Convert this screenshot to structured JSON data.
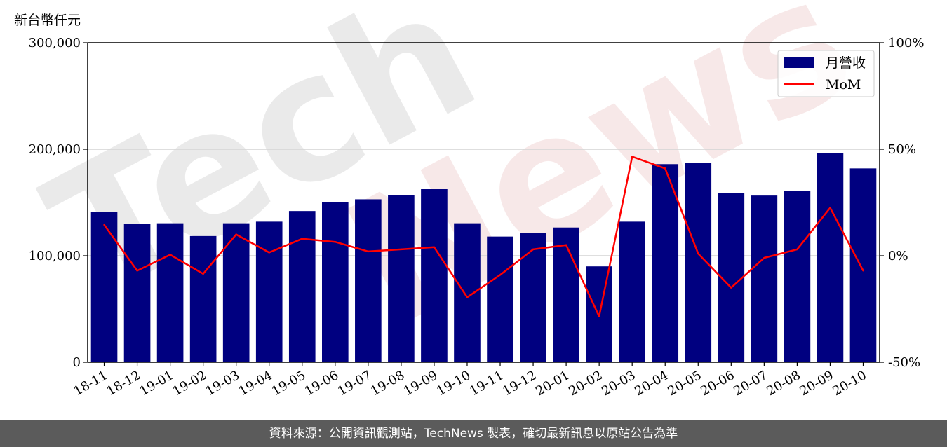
{
  "unit_label": "新台幣仟元",
  "footer_text": "資料來源：公開資訊觀測站，TechNews 製表，確切最新訊息以原站公告為準",
  "watermark": {
    "part1": "Tech",
    "part2": "News"
  },
  "chart_data": {
    "type": "bar",
    "categories": [
      "18-11",
      "18-12",
      "19-01",
      "19-02",
      "19-03",
      "19-04",
      "19-05",
      "19-06",
      "19-07",
      "19-08",
      "19-09",
      "19-10",
      "19-11",
      "19-12",
      "20-01",
      "20-02",
      "20-03",
      "20-04",
      "20-05",
      "20-06",
      "20-07",
      "20-08",
      "20-09",
      "20-10"
    ],
    "series": [
      {
        "name": "月營收",
        "type": "bar",
        "axis": "left",
        "color": "#000080",
        "values": [
          141000,
          130000,
          130500,
          118500,
          130500,
          132000,
          142000,
          150500,
          153000,
          157000,
          162500,
          130500,
          118000,
          121500,
          126500,
          90000,
          132000,
          186000,
          187500,
          159000,
          156500,
          161000,
          196500,
          182000
        ]
      },
      {
        "name": "MoM",
        "type": "line",
        "axis": "right",
        "color": "#ff0000",
        "values": [
          14.5,
          -7.0,
          0.5,
          -8.5,
          10.0,
          1.5,
          8.0,
          6.5,
          2.0,
          3.0,
          4.0,
          -19.5,
          -9.0,
          3.0,
          5.0,
          -28.5,
          46.5,
          41.0,
          1.0,
          -15.0,
          -1.0,
          3.0,
          22.5,
          -7.0
        ]
      }
    ],
    "yticks_left": [
      "0",
      "100,000",
      "200,000",
      "300,000"
    ],
    "yticks_right": [
      "-50%",
      "0%",
      "50%",
      "100%"
    ],
    "ylim_left": [
      0,
      300000
    ],
    "ylim_right": [
      -50,
      100
    ],
    "grid": "horizontal",
    "legend": "top-right"
  }
}
